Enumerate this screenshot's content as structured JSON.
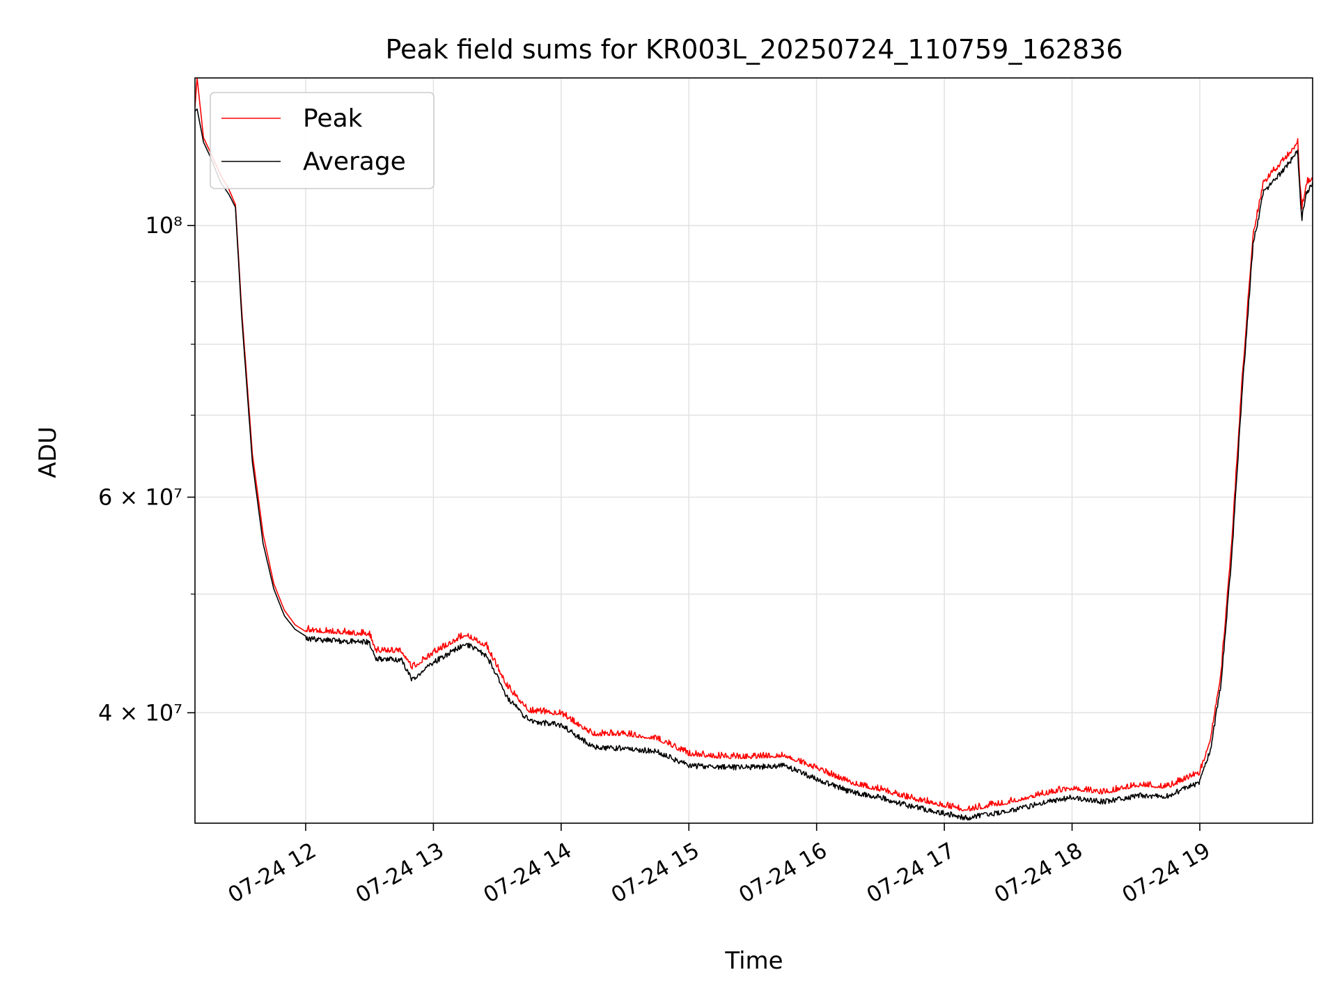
{
  "chart_data": {
    "type": "line",
    "title": "Peak field sums for KR003L_20250724_110759_162836",
    "xlabel": "Time",
    "ylabel": "ADU",
    "yscale": "log",
    "xlim": [
      "2025-07-24 11:08",
      "2025-07-24 19:53"
    ],
    "ylim": [
      32500000,
      132000000
    ],
    "grid": true,
    "legend_position": "upper-left",
    "x_ticks": [
      {
        "t": "2025-07-24 12:00",
        "label": "07-24 12"
      },
      {
        "t": "2025-07-24 13:00",
        "label": "07-24 13"
      },
      {
        "t": "2025-07-24 14:00",
        "label": "07-24 14"
      },
      {
        "t": "2025-07-24 15:00",
        "label": "07-24 15"
      },
      {
        "t": "2025-07-24 16:00",
        "label": "07-24 16"
      },
      {
        "t": "2025-07-24 17:00",
        "label": "07-24 17"
      },
      {
        "t": "2025-07-24 18:00",
        "label": "07-24 18"
      },
      {
        "t": "2025-07-24 19:00",
        "label": "07-24 19"
      }
    ],
    "y_major_ticks": [
      {
        "value": 40000000,
        "label": "4 × 10⁷"
      },
      {
        "value": 60000000,
        "label": "6 × 10⁷"
      },
      {
        "value": 100000000,
        "label": "10⁸"
      }
    ],
    "y_minor_ticks": [
      50000000,
      70000000,
      80000000,
      90000000
    ],
    "series": [
      {
        "name": "Peak",
        "color": "#ff0000",
        "x": [
          "2025-07-24 11:08",
          "2025-07-24 11:09",
          "2025-07-24 11:12",
          "2025-07-24 11:15",
          "2025-07-24 11:20",
          "2025-07-24 11:24",
          "2025-07-24 11:27",
          "2025-07-24 11:30",
          "2025-07-24 11:35",
          "2025-07-24 11:40",
          "2025-07-24 11:45",
          "2025-07-24 11:50",
          "2025-07-24 11:55",
          "2025-07-24 12:00",
          "2025-07-24 12:30",
          "2025-07-24 12:33",
          "2025-07-24 12:45",
          "2025-07-24 12:50",
          "2025-07-24 13:00",
          "2025-07-24 13:15",
          "2025-07-24 13:25",
          "2025-07-24 13:35",
          "2025-07-24 13:45",
          "2025-07-24 14:00",
          "2025-07-24 14:15",
          "2025-07-24 14:30",
          "2025-07-24 14:45",
          "2025-07-24 15:00",
          "2025-07-24 15:15",
          "2025-07-24 15:30",
          "2025-07-24 15:45",
          "2025-07-24 16:00",
          "2025-07-24 16:15",
          "2025-07-24 16:30",
          "2025-07-24 16:45",
          "2025-07-24 17:00",
          "2025-07-24 17:10",
          "2025-07-24 17:30",
          "2025-07-24 17:45",
          "2025-07-24 18:00",
          "2025-07-24 18:15",
          "2025-07-24 18:30",
          "2025-07-24 18:45",
          "2025-07-24 19:00",
          "2025-07-24 19:05",
          "2025-07-24 19:10",
          "2025-07-24 19:15",
          "2025-07-24 19:20",
          "2025-07-24 19:25",
          "2025-07-24 19:30",
          "2025-07-24 19:35",
          "2025-07-24 19:40",
          "2025-07-24 19:46",
          "2025-07-24 19:47",
          "2025-07-24 19:48",
          "2025-07-24 19:50",
          "2025-07-24 19:53"
        ],
        "y": [
          125000000,
          132000000,
          118000000,
          115000000,
          110000000,
          107000000,
          104000000,
          85000000,
          65000000,
          56000000,
          51000000,
          48500000,
          47200000,
          46600000,
          46200000,
          44800000,
          44800000,
          43400000,
          44600000,
          46200000,
          45200000,
          41800000,
          40000000,
          39800000,
          38300000,
          38300000,
          38000000,
          36900000,
          36700000,
          36700000,
          36800000,
          35900000,
          35000000,
          34500000,
          33900000,
          33500000,
          33200000,
          33700000,
          34200000,
          34600000,
          34300000,
          34800000,
          34700000,
          35600000,
          38000000,
          43000000,
          55000000,
          75000000,
          98000000,
          108000000,
          110500000,
          113000000,
          116500000,
          108000000,
          103000000,
          108000000,
          109000000
        ]
      },
      {
        "name": "Average",
        "color": "#000000",
        "x": [
          "2025-07-24 11:08",
          "2025-07-24 11:09",
          "2025-07-24 11:12",
          "2025-07-24 11:15",
          "2025-07-24 11:20",
          "2025-07-24 11:24",
          "2025-07-24 11:27",
          "2025-07-24 11:30",
          "2025-07-24 11:35",
          "2025-07-24 11:40",
          "2025-07-24 11:45",
          "2025-07-24 11:50",
          "2025-07-24 11:55",
          "2025-07-24 12:00",
          "2025-07-24 12:30",
          "2025-07-24 12:33",
          "2025-07-24 12:45",
          "2025-07-24 12:50",
          "2025-07-24 13:00",
          "2025-07-24 13:15",
          "2025-07-24 13:25",
          "2025-07-24 13:35",
          "2025-07-24 13:45",
          "2025-07-24 14:00",
          "2025-07-24 14:15",
          "2025-07-24 14:30",
          "2025-07-24 14:45",
          "2025-07-24 15:00",
          "2025-07-24 15:15",
          "2025-07-24 15:30",
          "2025-07-24 15:45",
          "2025-07-24 16:00",
          "2025-07-24 16:15",
          "2025-07-24 16:30",
          "2025-07-24 16:45",
          "2025-07-24 17:00",
          "2025-07-24 17:10",
          "2025-07-24 17:30",
          "2025-07-24 17:45",
          "2025-07-24 18:00",
          "2025-07-24 18:15",
          "2025-07-24 18:30",
          "2025-07-24 18:45",
          "2025-07-24 19:00",
          "2025-07-24 19:05",
          "2025-07-24 19:10",
          "2025-07-24 19:15",
          "2025-07-24 19:20",
          "2025-07-24 19:25",
          "2025-07-24 19:30",
          "2025-07-24 19:35",
          "2025-07-24 19:40",
          "2025-07-24 19:46",
          "2025-07-24 19:47",
          "2025-07-24 19:48",
          "2025-07-24 19:50",
          "2025-07-24 19:53"
        ],
        "y": [
          124000000,
          124500000,
          117000000,
          114000000,
          108500000,
          106000000,
          103500000,
          84000000,
          64000000,
          55000000,
          50500000,
          48000000,
          46800000,
          46200000,
          45900000,
          44500000,
          44400000,
          42800000,
          44200000,
          45800000,
          44800000,
          41300000,
          39600000,
          39300000,
          37700000,
          37600000,
          37400000,
          36400000,
          36300000,
          36300000,
          36400000,
          35500000,
          34700000,
          34300000,
          33700000,
          33300000,
          33000000,
          33400000,
          33900000,
          34300000,
          34000000,
          34400000,
          34400000,
          35300000,
          37500000,
          42500000,
          54000000,
          74000000,
          97000000,
          107000000,
          109500000,
          112000000,
          115500000,
          107000000,
          102000000,
          107000000,
          108500000
        ]
      }
    ]
  }
}
